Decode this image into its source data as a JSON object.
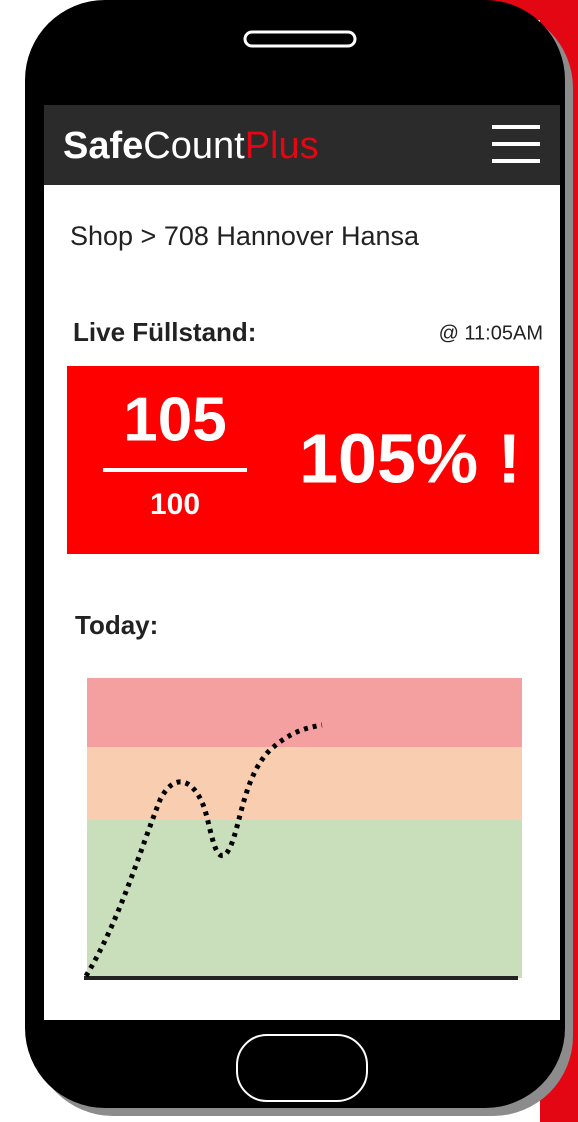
{
  "header": {
    "brand": {
      "part1": "Safe",
      "part2": "Count",
      "part3": "Plus"
    }
  },
  "breadcrumb": "Shop > 708 Hannover Hansa",
  "live": {
    "label": "Live Füllstand:",
    "time": "@ 11:05AM",
    "count": "105",
    "capacity": "100",
    "percent": "105% !"
  },
  "today": {
    "label": "Today:"
  }
}
